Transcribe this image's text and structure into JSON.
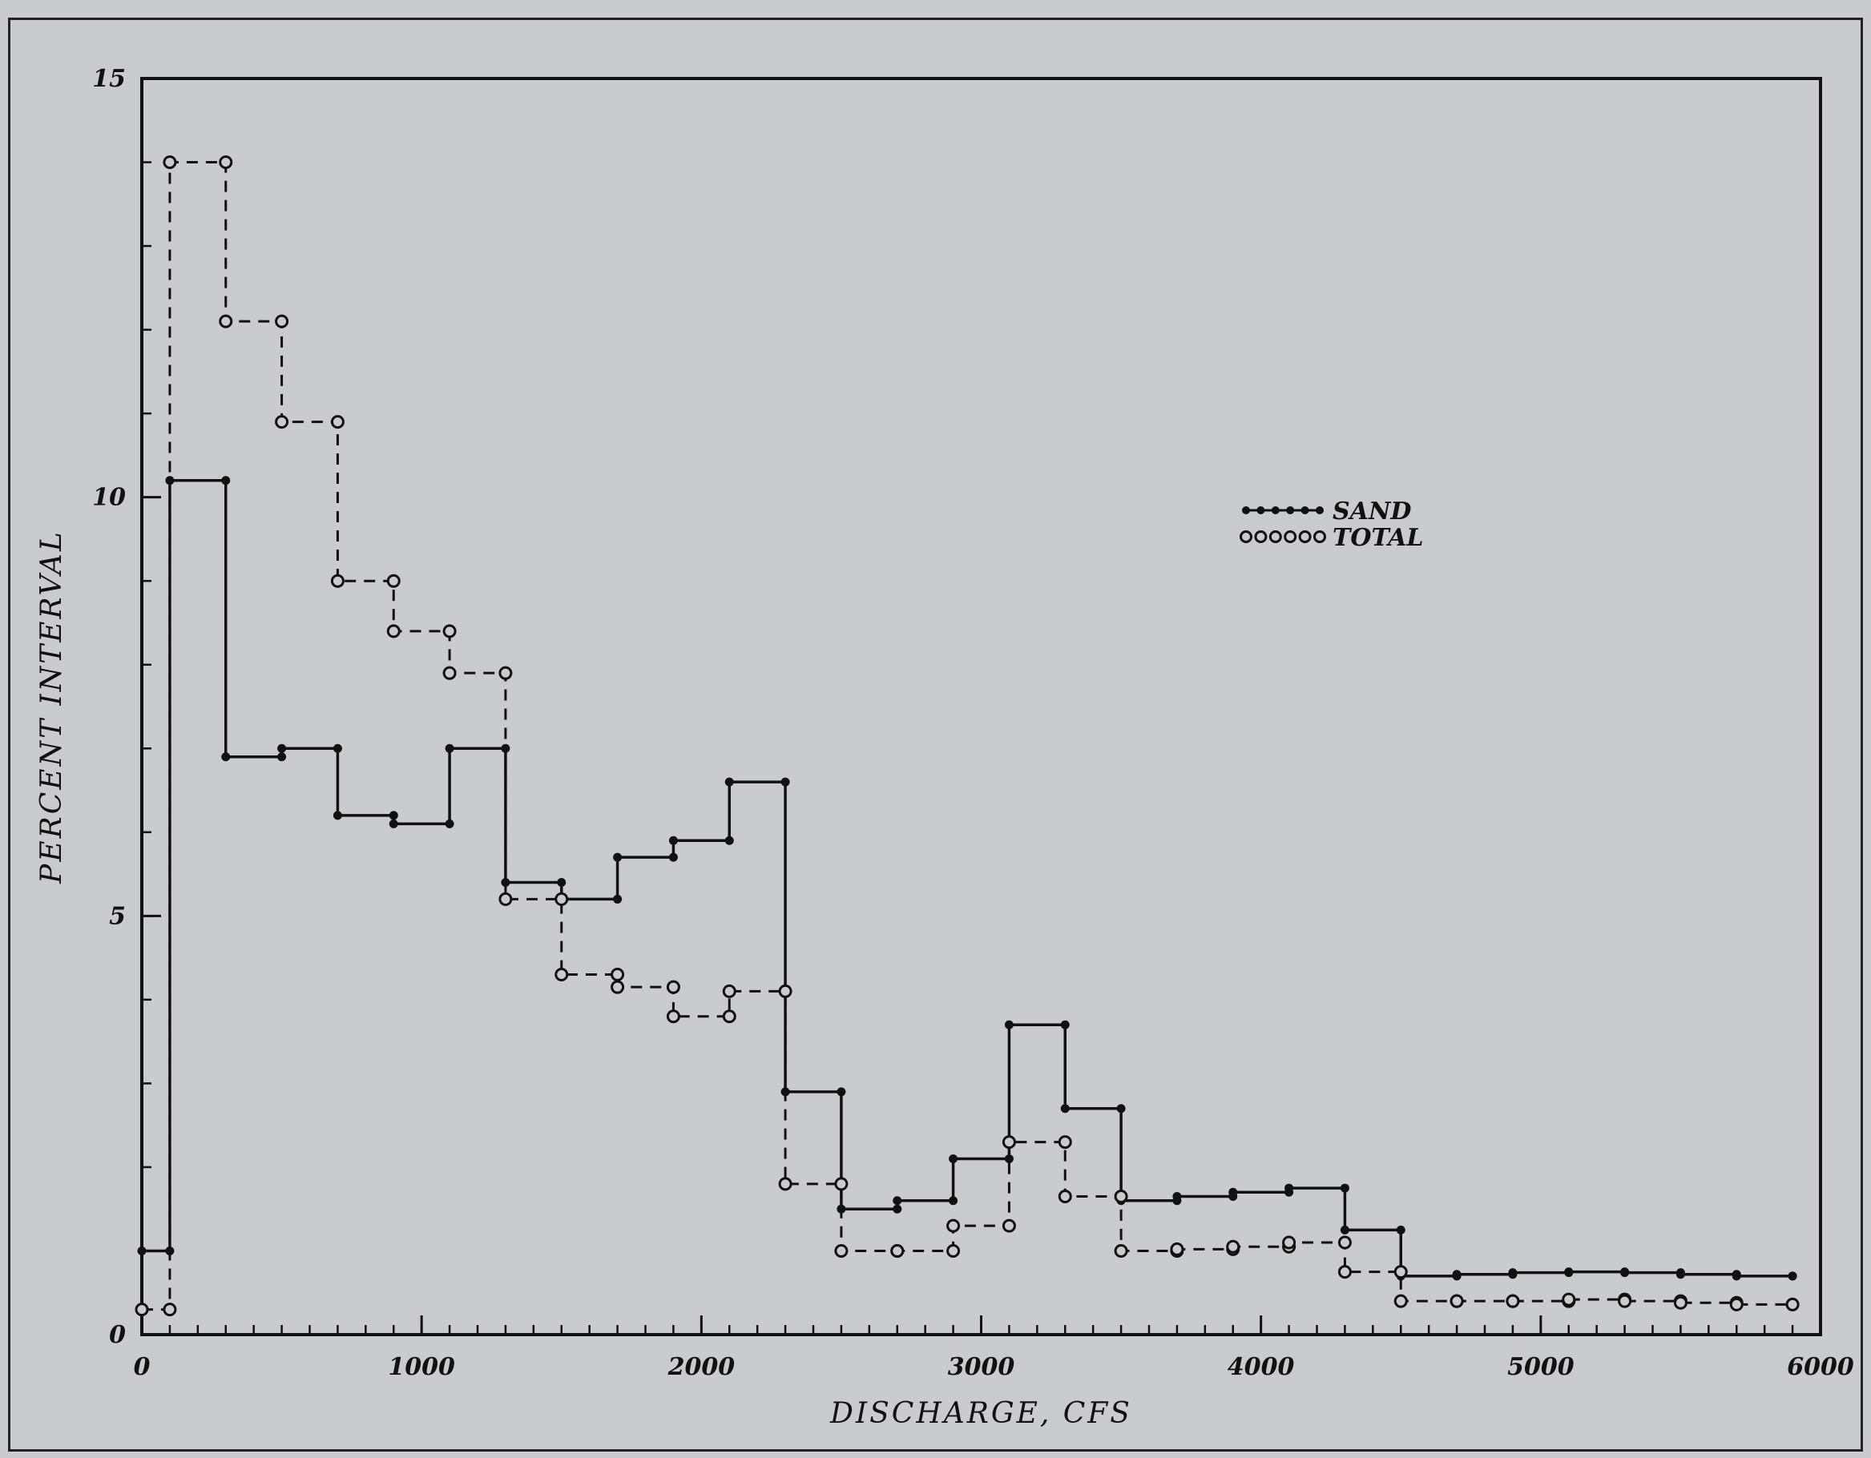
{
  "chart_data": {
    "type": "line",
    "step": true,
    "title": "",
    "xlabel": "DISCHARGE, CFS",
    "ylabel": "PERCENT INTERVAL",
    "xlim": [
      0,
      6000
    ],
    "ylim": [
      0,
      15
    ],
    "x_ticks": [
      0,
      1000,
      2000,
      3000,
      4000,
      5000,
      6000
    ],
    "x_tick_labels": [
      "0",
      "1000",
      "2000",
      "3000",
      "4000",
      "5000",
      "6000"
    ],
    "y_ticks": [
      0,
      5,
      10,
      15
    ],
    "y_tick_labels": [
      "0",
      "5",
      "10",
      "15"
    ],
    "x_minor_step": 100,
    "y_minor_step": 1,
    "grid": false,
    "legend_position": "upper-center-right",
    "series": [
      {
        "name": "SAND",
        "style": "solid",
        "marker": "filled-dot",
        "color": "#111111",
        "x": [
          0,
          100,
          300,
          500,
          700,
          900,
          1100,
          1300,
          1500,
          1700,
          1900,
          2100,
          2300,
          2500,
          2700,
          2900,
          3100,
          3300,
          3500,
          3700,
          3900,
          4100,
          4300,
          4500,
          4700,
          4900,
          5100,
          5300,
          5500,
          5700,
          5900
        ],
        "values": [
          1.0,
          10.2,
          6.9,
          7.0,
          6.2,
          6.1,
          7.0,
          5.4,
          5.2,
          5.7,
          5.9,
          6.6,
          2.9,
          1.5,
          1.6,
          2.1,
          3.7,
          2.7,
          1.6,
          1.65,
          1.7,
          1.75,
          1.25,
          0.7,
          0.72,
          0.74,
          0.75,
          0.74,
          0.72,
          0.7,
          0.7
        ]
      },
      {
        "name": "TOTAL",
        "style": "dashed",
        "marker": "open-circle",
        "color": "#111111",
        "x": [
          0,
          100,
          300,
          500,
          700,
          900,
          1100,
          1300,
          1500,
          1700,
          1900,
          2100,
          2300,
          2500,
          2700,
          2900,
          3100,
          3300,
          3500,
          3700,
          3900,
          4100,
          4300,
          4500,
          4700,
          4900,
          5100,
          5300,
          5500,
          5700,
          5900
        ],
        "values": [
          0.3,
          14.0,
          12.1,
          10.9,
          9.0,
          8.4,
          7.9,
          5.2,
          4.3,
          4.15,
          3.8,
          4.1,
          1.8,
          1.0,
          1.0,
          1.3,
          2.3,
          1.65,
          1.0,
          1.02,
          1.05,
          1.1,
          0.75,
          0.4,
          0.4,
          0.4,
          0.42,
          0.4,
          0.38,
          0.36,
          0.36
        ]
      }
    ]
  }
}
